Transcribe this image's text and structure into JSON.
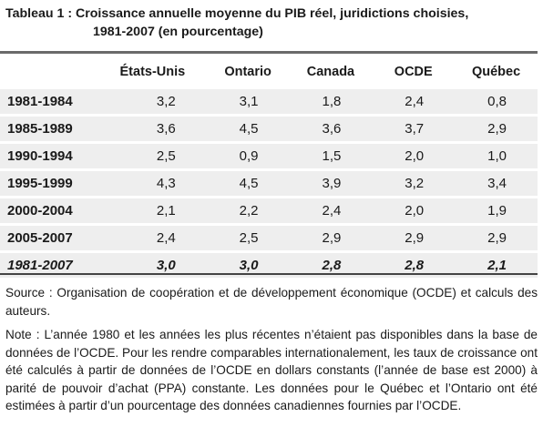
{
  "title": {
    "line1": "Tableau 1 : Croissance annuelle moyenne du PIB réel, juridictions choisies,",
    "line2": "1981-2007 (en pourcentage)"
  },
  "table": {
    "columns": [
      "États-Unis",
      "Ontario",
      "Canada",
      "OCDE",
      "Québec"
    ],
    "rows": [
      {
        "period": "1981-1984",
        "values": [
          "3,2",
          "3,1",
          "1,8",
          "2,4",
          "0,8"
        ]
      },
      {
        "period": "1985-1989",
        "values": [
          "3,6",
          "4,5",
          "3,6",
          "3,7",
          "2,9"
        ]
      },
      {
        "period": "1990-1994",
        "values": [
          "2,5",
          "0,9",
          "1,5",
          "2,0",
          "1,0"
        ]
      },
      {
        "period": "1995-1999",
        "values": [
          "4,3",
          "4,5",
          "3,9",
          "3,2",
          "3,4"
        ]
      },
      {
        "period": "2000-2004",
        "values": [
          "2,1",
          "2,2",
          "2,4",
          "2,0",
          "1,9"
        ]
      },
      {
        "period": "2005-2007",
        "values": [
          "2,4",
          "2,5",
          "2,9",
          "2,9",
          "2,9"
        ]
      }
    ],
    "total": {
      "period": "1981-2007",
      "values": [
        "3,0",
        "3,0",
        "2,8",
        "2,8",
        "2,1"
      ]
    }
  },
  "source": "Source : Organisation de coopération et de développement économique (OCDE) et calculs des auteurs.",
  "note": "Note : L’année 1980 et les années les plus récentes n’étaient pas disponibles dans la base de données de l’OCDE. Pour les rendre comparables internationalement, les taux de croissance ont été calculés à partir de données de l’OCDE en dollars constants (l’année de base est 2000) à parité de pouvoir d’achat (PPA) constante. Les données pour le Québec et l’Ontario ont été estimées à partir d’un pourcentage des données canadiennes fournies par l’OCDE."
}
